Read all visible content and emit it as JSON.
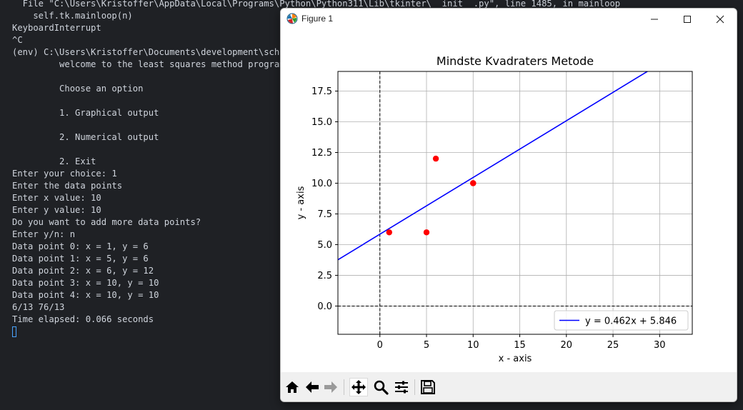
{
  "terminal": {
    "lines": [
      "  File \"C:\\Users\\Kristoffer\\AppData\\Local\\Programs\\Python\\Python311\\Lib\\tkinter\\__init__.py\", line 1485, in mainloop",
      "    self.tk.mainloop(n)",
      "KeyboardInterrupt",
      "^C",
      "(env) C:\\Users\\Kristoffer\\Documents\\development\\school",
      "         welcome to the least squares method program",
      "",
      "         Choose an option",
      "",
      "         1. Graphical output",
      "",
      "         2. Numerical output",
      "",
      "         2. Exit",
      "Enter your choice: 1",
      "Enter the data points",
      "Enter x value: 10",
      "Enter y value: 10",
      "Do you want to add more data points?",
      "Enter y/n: n",
      "Data point 0: x = 1, y = 6",
      "Data point 1: x = 5, y = 6",
      "Data point 2: x = 6, y = 12",
      "Data point 3: x = 10, y = 10",
      "Data point 4: x = 10, y = 10",
      "6/13 76/13",
      "Time elapsed: 0.066 seconds"
    ]
  },
  "window": {
    "title": "Figure 1",
    "controls": [
      "minimize",
      "maximize",
      "close"
    ]
  },
  "toolbar": {
    "buttons": [
      {
        "name": "home-button",
        "icon": "home-icon"
      },
      {
        "name": "back-button",
        "icon": "arrow-left-icon"
      },
      {
        "name": "forward-button",
        "icon": "arrow-right-icon"
      },
      {
        "name": "pan-button",
        "icon": "move-icon",
        "active": true
      },
      {
        "name": "zoom-button",
        "icon": "magnifier-icon"
      },
      {
        "name": "configure-subplots-button",
        "icon": "sliders-icon"
      },
      {
        "name": "save-button",
        "icon": "floppy-disk-icon"
      }
    ]
  },
  "chart_data": {
    "type": "scatter",
    "title": "Mindste Kvadraters Metode",
    "xlabel": "x - axis",
    "ylabel": "y - axis",
    "xlim": [
      -4.5,
      33.5
    ],
    "ylim": [
      -2.3,
      19.1
    ],
    "xticks": [
      0,
      5,
      10,
      15,
      20,
      25,
      30
    ],
    "yticks": [
      0.0,
      2.5,
      5.0,
      7.5,
      10.0,
      12.5,
      15.0,
      17.5
    ],
    "xtick_labels": [
      "0",
      "5",
      "10",
      "15",
      "20",
      "25",
      "30"
    ],
    "ytick_labels": [
      "0.0",
      "2.5",
      "5.0",
      "7.5",
      "10.0",
      "12.5",
      "15.0",
      "17.5"
    ],
    "grid": true,
    "points": {
      "x": [
        1,
        5,
        6,
        10,
        10
      ],
      "y": [
        6,
        6,
        12,
        10,
        10
      ],
      "color": "#ff0000"
    },
    "regression_line": {
      "label": "y = 0.462x + 5.846",
      "slope": 0.462,
      "intercept": 5.846,
      "color": "#0000ff"
    },
    "reference_lines": {
      "x": 0,
      "y": 0,
      "style": "dashed",
      "color": "#000000"
    },
    "legend_position": "lower-right"
  }
}
